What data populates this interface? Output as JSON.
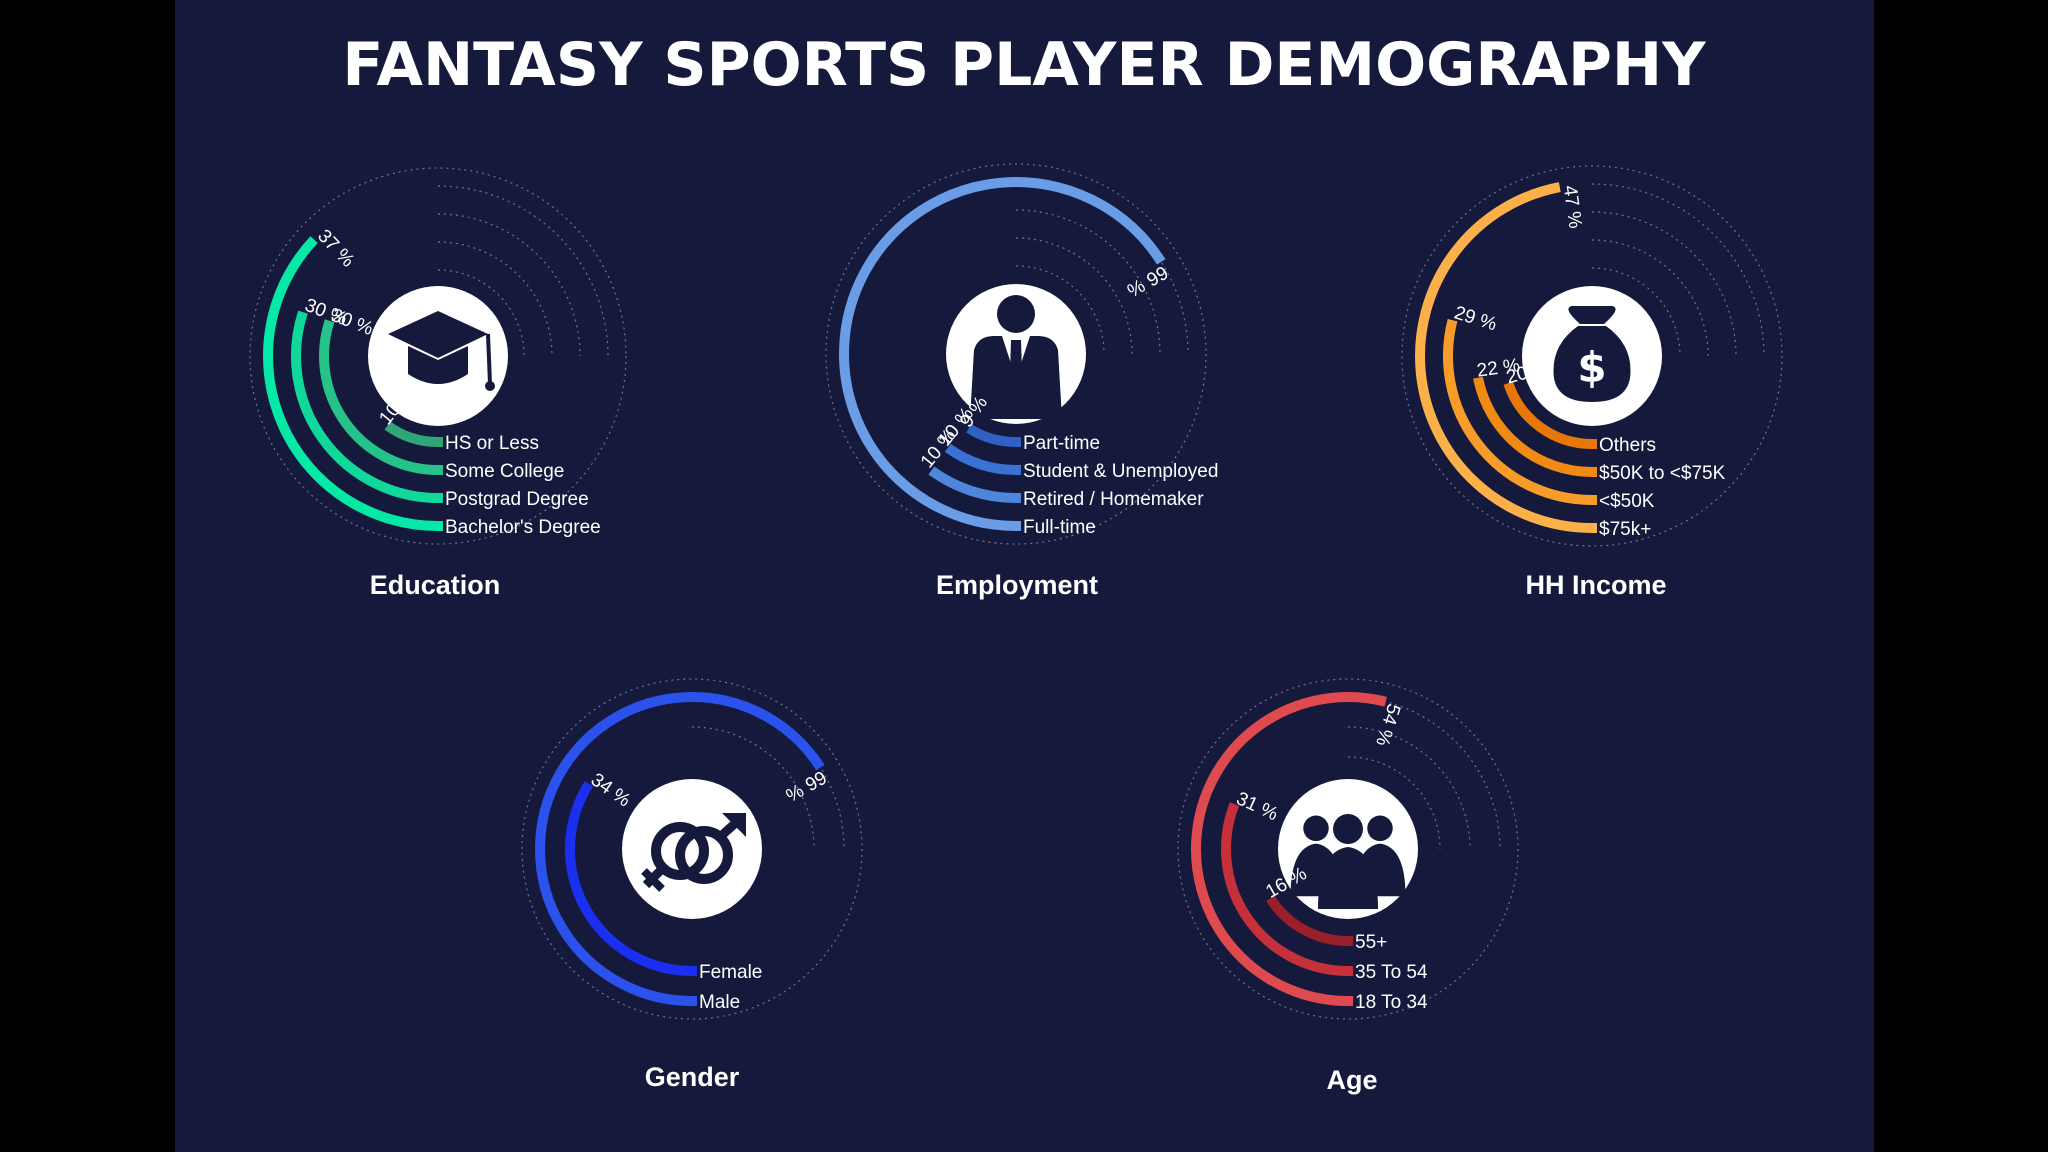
{
  "title": "FANTASY SPORTS PLAYER DEMOGRAPHY",
  "chart_data": [
    {
      "type": "radial-bar",
      "title": "Education",
      "icon": "graduation-cap-icon",
      "colors": [
        "#2fa678",
        "#25c28a",
        "#10d89a",
        "#06e8a6"
      ],
      "series": [
        {
          "name": "HS or Less",
          "value": 10
        },
        {
          "name": "Some College",
          "value": 30
        },
        {
          "name": "Postgrad Degree",
          "value": 30
        },
        {
          "name": "Bachelor's Degree",
          "value": 37
        }
      ],
      "value_labels": [
        "10 %",
        "30 %",
        "30 %",
        "37 %"
      ]
    },
    {
      "type": "radial-bar",
      "title": "Employment",
      "icon": "businessman-icon",
      "colors": [
        "#2f60c4",
        "#3a72d4",
        "#4f86dd",
        "#6a9de6"
      ],
      "series": [
        {
          "name": "Part-time",
          "value": 9
        },
        {
          "name": "Student & Unemployed",
          "value": 10
        },
        {
          "name": "Retired / Homemaker",
          "value": 10
        },
        {
          "name": "Full-time",
          "value": 66
        }
      ],
      "value_labels": [
        "9 %",
        "10 %",
        "10 %",
        "66 %"
      ]
    },
    {
      "type": "radial-bar",
      "title": "HH Income",
      "icon": "money-bag-icon",
      "colors": [
        "#e8770a",
        "#f08a12",
        "#f79c28",
        "#fbb04a"
      ],
      "series": [
        {
          "name": "Others",
          "value": 20
        },
        {
          "name": "$50K to <$75K",
          "value": 22
        },
        {
          "name": "<$50K",
          "value": 29
        },
        {
          "name": "$75k+",
          "value": 47
        }
      ],
      "value_labels": [
        "20 %",
        "22 %",
        "29 %",
        "47 %"
      ]
    },
    {
      "type": "radial-bar",
      "title": "Gender",
      "icon": "gender-symbol-icon",
      "colors": [
        "#1a2ff0",
        "#2c52ee"
      ],
      "series": [
        {
          "name": "Female",
          "value": 34
        },
        {
          "name": "Male",
          "value": 66
        }
      ],
      "value_labels": [
        "34 %",
        "66 %"
      ]
    },
    {
      "type": "radial-bar",
      "title": "Age",
      "icon": "people-group-icon",
      "colors": [
        "#9b1f2a",
        "#c6303a",
        "#de4a4e"
      ],
      "series": [
        {
          "name": "55+",
          "value": 16
        },
        {
          "name": "35 To 54",
          "value": 31
        },
        {
          "name": "18 To 34",
          "value": 54
        }
      ],
      "value_labels": [
        "16 %",
        "31 %",
        "54 %"
      ]
    }
  ]
}
